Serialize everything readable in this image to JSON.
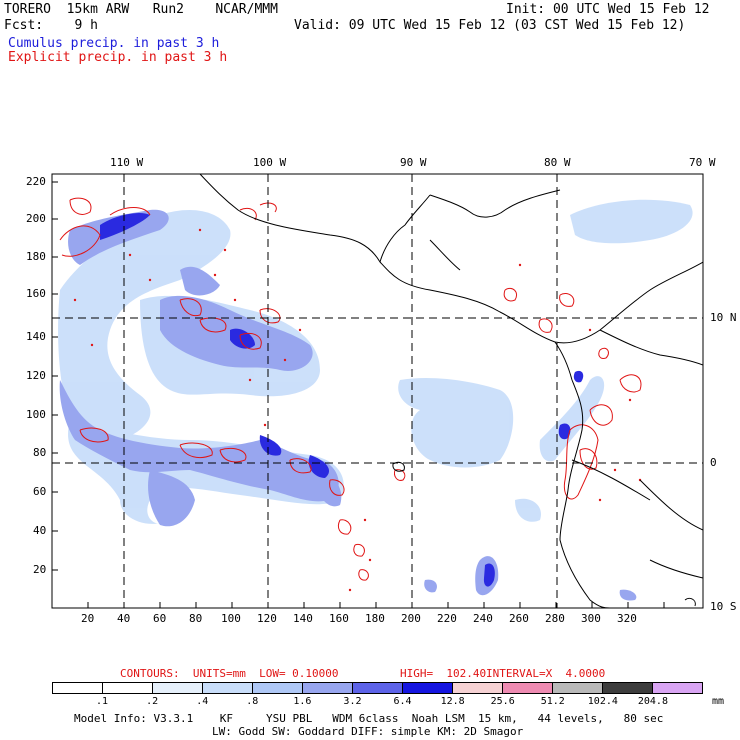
{
  "header": {
    "model": "TORERO  15km ARW   Run2    NCAR/MMM",
    "init": "Init: 00 UTC Wed 15 Feb 12",
    "fcst": "Fcst:    9 h",
    "valid": "Valid: 09 UTC Wed 15 Feb 12 (03 CST Wed 15 Feb 12)",
    "field1": "Cumulus precip. in past 3 h",
    "field2": "Explicit precip. in past 3 h"
  },
  "map": {
    "lon_labels": [
      "110 W",
      "100 W",
      "90 W",
      "80 W",
      "70 W"
    ],
    "lat_labels": [
      "10 N",
      "0",
      "10 S"
    ],
    "y_ticks": [
      "220",
      "200",
      "180",
      "160",
      "140",
      "120",
      "100",
      "80",
      "60",
      "40",
      "20"
    ],
    "x_ticks": [
      "20",
      "40",
      "60",
      "80",
      "100",
      "120",
      "140",
      "160",
      "180",
      "200",
      "220",
      "240",
      "260",
      "280",
      "300",
      "320"
    ]
  },
  "contours_line": {
    "label": "CONTOURS:  UNITS=mm  LOW= 0.10000",
    "high": "HIGH=  102.40",
    "interval": "INTERVAL=X  4.0000"
  },
  "colorbar": {
    "labels": [
      ".1",
      ".2",
      ".4",
      ".8",
      "1.6",
      "3.2",
      "6.4",
      "12.8",
      "25.6",
      "51.2",
      "102.4",
      "204.8"
    ],
    "colors": [
      "#ffffff",
      "#ffffff",
      "#e6f0fb",
      "#c9defa",
      "#afc8f6",
      "#98a6ef",
      "#5d63e8",
      "#1515e0",
      "#f6d2d4",
      "#ee8bb2",
      "#b9b9b9",
      "#3d3d3d",
      "#d9a5f3"
    ],
    "unit": "mm"
  },
  "footer": {
    "line1": "Model Info: V3.3.1    KF     YSU PBL   WDM 6class  Noah LSM  15 km,   44 levels,   80 sec",
    "line2": "LW: Godd SW: Goddard DIFF: simple KM: 2D Smagor"
  }
}
